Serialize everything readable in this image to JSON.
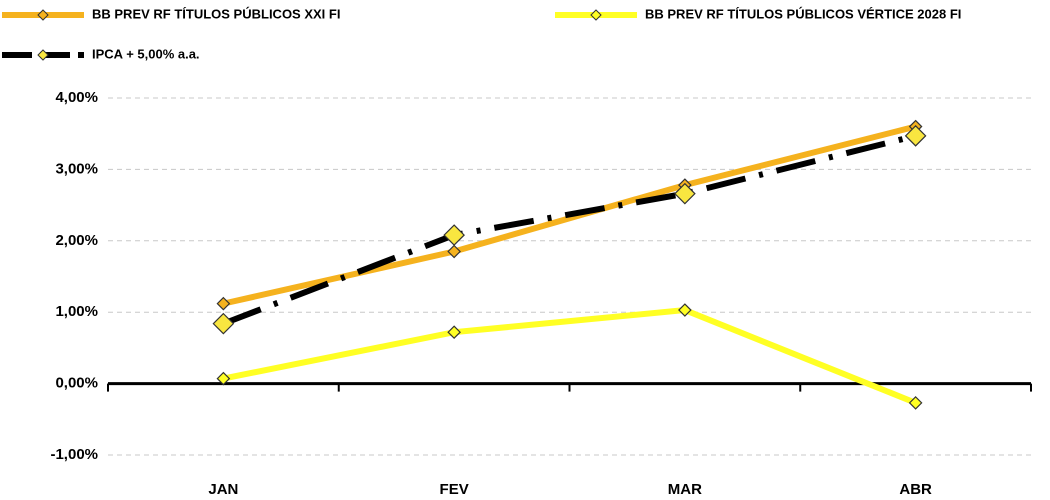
{
  "chart_data": {
    "type": "line",
    "categories": [
      "JAN",
      "FEV",
      "MAR",
      "ABR"
    ],
    "series": [
      {
        "name": "BB PREV RF TÍTULOS PÚBLICOS XXI FI",
        "color": "#f5b21e",
        "marker_color": "#f5b21e",
        "values": [
          1.12,
          1.85,
          2.78,
          3.6
        ]
      },
      {
        "name": "BB PREV RF TÍTULOS PÚBLICOS VÉRTICE 2028 FI",
        "color": "#ffff24",
        "marker_color": "#ffff24",
        "values": [
          0.07,
          0.72,
          1.03,
          -0.27
        ]
      },
      {
        "name": "IPCA + 5,00% a.a.",
        "color": "#000000",
        "marker_color": "#f9e640",
        "dash": "dashdot",
        "values": [
          0.84,
          2.08,
          2.66,
          3.47
        ]
      }
    ],
    "ylim": [
      -1,
      4
    ],
    "yticks": [
      {
        "value": -1,
        "label": "-1,00%"
      },
      {
        "value": 0,
        "label": "0,00%"
      },
      {
        "value": 1,
        "label": "1,00%"
      },
      {
        "value": 2,
        "label": "2,00%"
      },
      {
        "value": 3,
        "label": "3,00%"
      },
      {
        "value": 4,
        "label": "4,00%"
      }
    ],
    "grid": true
  }
}
